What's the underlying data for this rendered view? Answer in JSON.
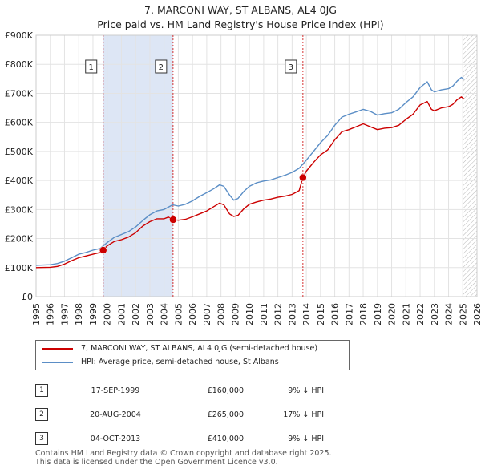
{
  "title_line1": "7, MARCONI WAY, ST ALBANS, AL4 0JG",
  "title_line2": "Price paid vs. HM Land Registry's House Price Index (HPI)",
  "chart_data": {
    "type": "line",
    "ylim": [
      0,
      900000
    ],
    "xlim": [
      1995,
      2026
    ],
    "y_ticks": [
      {
        "v": 0,
        "label": "£0"
      },
      {
        "v": 100000,
        "label": "£100K"
      },
      {
        "v": 200000,
        "label": "£200K"
      },
      {
        "v": 300000,
        "label": "£300K"
      },
      {
        "v": 400000,
        "label": "£400K"
      },
      {
        "v": 500000,
        "label": "£500K"
      },
      {
        "v": 600000,
        "label": "£600K"
      },
      {
        "v": 700000,
        "label": "£700K"
      },
      {
        "v": 800000,
        "label": "£800K"
      },
      {
        "v": 900000,
        "label": "£900K"
      }
    ],
    "x_ticks": [
      1995,
      1996,
      1997,
      1998,
      1999,
      2000,
      2001,
      2002,
      2003,
      2004,
      2005,
      2006,
      2007,
      2008,
      2009,
      2010,
      2011,
      2012,
      2013,
      2014,
      2015,
      2016,
      2017,
      2018,
      2019,
      2020,
      2021,
      2022,
      2023,
      2024,
      2025,
      2026
    ],
    "grid": true,
    "colors": {
      "property": "#cc0000",
      "hpi": "#5b8ec6",
      "shade": "#dde6f5",
      "marker_line": "#cc0000"
    },
    "series": [
      {
        "name": "7, MARCONI WAY, ST ALBANS, AL4 0JG (semi-detached house)",
        "points": [
          [
            1995.0,
            100000
          ],
          [
            1996.0,
            101000
          ],
          [
            1996.5,
            104000
          ],
          [
            1997.0,
            112000
          ],
          [
            1997.5,
            124000
          ],
          [
            1998.0,
            134000
          ],
          [
            1998.5,
            140000
          ],
          [
            1999.0,
            146000
          ],
          [
            1999.5,
            152000
          ],
          [
            1999.72,
            160000
          ],
          [
            2000.0,
            175000
          ],
          [
            2000.5,
            190000
          ],
          [
            2001.0,
            196000
          ],
          [
            2001.5,
            205000
          ],
          [
            2002.0,
            220000
          ],
          [
            2002.5,
            243000
          ],
          [
            2003.0,
            258000
          ],
          [
            2003.5,
            268000
          ],
          [
            2004.0,
            268000
          ],
          [
            2004.3,
            274000
          ],
          [
            2004.63,
            265000
          ],
          [
            2005.0,
            263000
          ],
          [
            2005.5,
            266000
          ],
          [
            2006.0,
            275000
          ],
          [
            2006.5,
            285000
          ],
          [
            2007.0,
            295000
          ],
          [
            2007.5,
            310000
          ],
          [
            2007.9,
            322000
          ],
          [
            2008.2,
            316000
          ],
          [
            2008.6,
            285000
          ],
          [
            2008.9,
            276000
          ],
          [
            2009.2,
            280000
          ],
          [
            2009.6,
            302000
          ],
          [
            2010.0,
            318000
          ],
          [
            2010.5,
            326000
          ],
          [
            2011.0,
            332000
          ],
          [
            2011.5,
            336000
          ],
          [
            2012.0,
            342000
          ],
          [
            2012.5,
            346000
          ],
          [
            2013.0,
            352000
          ],
          [
            2013.5,
            365000
          ],
          [
            2013.76,
            410000
          ],
          [
            2014.0,
            432000
          ],
          [
            2014.5,
            462000
          ],
          [
            2015.0,
            488000
          ],
          [
            2015.5,
            505000
          ],
          [
            2016.0,
            540000
          ],
          [
            2016.5,
            568000
          ],
          [
            2017.0,
            575000
          ],
          [
            2017.5,
            585000
          ],
          [
            2018.0,
            595000
          ],
          [
            2018.5,
            585000
          ],
          [
            2019.0,
            575000
          ],
          [
            2019.5,
            580000
          ],
          [
            2020.0,
            582000
          ],
          [
            2020.5,
            590000
          ],
          [
            2021.0,
            610000
          ],
          [
            2021.5,
            628000
          ],
          [
            2022.0,
            660000
          ],
          [
            2022.5,
            672000
          ],
          [
            2022.8,
            645000
          ],
          [
            2023.0,
            640000
          ],
          [
            2023.5,
            650000
          ],
          [
            2024.0,
            654000
          ],
          [
            2024.3,
            662000
          ],
          [
            2024.6,
            678000
          ],
          [
            2024.9,
            688000
          ],
          [
            2025.1,
            680000
          ]
        ]
      },
      {
        "name": "HPI: Average price, semi-detached house, St Albans",
        "points": [
          [
            1995.0,
            108000
          ],
          [
            1996.0,
            110000
          ],
          [
            1996.5,
            114000
          ],
          [
            1997.0,
            122000
          ],
          [
            1997.5,
            134000
          ],
          [
            1998.0,
            146000
          ],
          [
            1998.5,
            152000
          ],
          [
            1999.0,
            160000
          ],
          [
            1999.5,
            166000
          ],
          [
            2000.0,
            186000
          ],
          [
            2000.5,
            204000
          ],
          [
            2001.0,
            214000
          ],
          [
            2001.5,
            224000
          ],
          [
            2002.0,
            240000
          ],
          [
            2002.5,
            262000
          ],
          [
            2003.0,
            282000
          ],
          [
            2003.5,
            295000
          ],
          [
            2004.0,
            300000
          ],
          [
            2004.6,
            316000
          ],
          [
            2005.0,
            312000
          ],
          [
            2005.5,
            318000
          ],
          [
            2006.0,
            330000
          ],
          [
            2006.5,
            345000
          ],
          [
            2007.0,
            358000
          ],
          [
            2007.5,
            372000
          ],
          [
            2007.9,
            385000
          ],
          [
            2008.2,
            380000
          ],
          [
            2008.6,
            350000
          ],
          [
            2008.9,
            332000
          ],
          [
            2009.2,
            338000
          ],
          [
            2009.6,
            362000
          ],
          [
            2010.0,
            380000
          ],
          [
            2010.5,
            392000
          ],
          [
            2011.0,
            398000
          ],
          [
            2011.5,
            402000
          ],
          [
            2012.0,
            410000
          ],
          [
            2012.5,
            418000
          ],
          [
            2013.0,
            428000
          ],
          [
            2013.5,
            442000
          ],
          [
            2014.0,
            470000
          ],
          [
            2014.5,
            500000
          ],
          [
            2015.0,
            530000
          ],
          [
            2015.5,
            555000
          ],
          [
            2016.0,
            590000
          ],
          [
            2016.5,
            618000
          ],
          [
            2017.0,
            628000
          ],
          [
            2017.5,
            636000
          ],
          [
            2018.0,
            645000
          ],
          [
            2018.5,
            638000
          ],
          [
            2019.0,
            625000
          ],
          [
            2019.5,
            630000
          ],
          [
            2020.0,
            633000
          ],
          [
            2020.5,
            645000
          ],
          [
            2021.0,
            668000
          ],
          [
            2021.5,
            688000
          ],
          [
            2022.0,
            720000
          ],
          [
            2022.5,
            740000
          ],
          [
            2022.8,
            712000
          ],
          [
            2023.0,
            705000
          ],
          [
            2023.5,
            712000
          ],
          [
            2024.0,
            716000
          ],
          [
            2024.3,
            725000
          ],
          [
            2024.6,
            742000
          ],
          [
            2024.9,
            755000
          ],
          [
            2025.1,
            748000
          ]
        ]
      }
    ],
    "sales": [
      {
        "num": "1",
        "x": 1999.72,
        "price": 160000,
        "date": "17-SEP-1999",
        "price_label": "£160,000",
        "pct": "9% ↓ HPI"
      },
      {
        "num": "2",
        "x": 2004.63,
        "price": 265000,
        "date": "20-AUG-2004",
        "price_label": "£265,000",
        "pct": "17% ↓ HPI"
      },
      {
        "num": "3",
        "x": 2013.76,
        "price": 410000,
        "date": "04-OCT-2013",
        "price_label": "£410,000",
        "pct": "9% ↓ HPI"
      }
    ],
    "shaded_spans": [
      [
        1999.72,
        2004.63
      ]
    ],
    "hatch_from": 2025.0
  },
  "legend": {
    "property_label": "7, MARCONI WAY, ST ALBANS, AL4 0JG (semi-detached house)",
    "hpi_label": "HPI: Average price, semi-detached house, St Albans"
  },
  "footer": {
    "line1": "Contains HM Land Registry data © Crown copyright and database right 2025.",
    "line2": "This data is licensed under the Open Government Licence v3.0."
  }
}
